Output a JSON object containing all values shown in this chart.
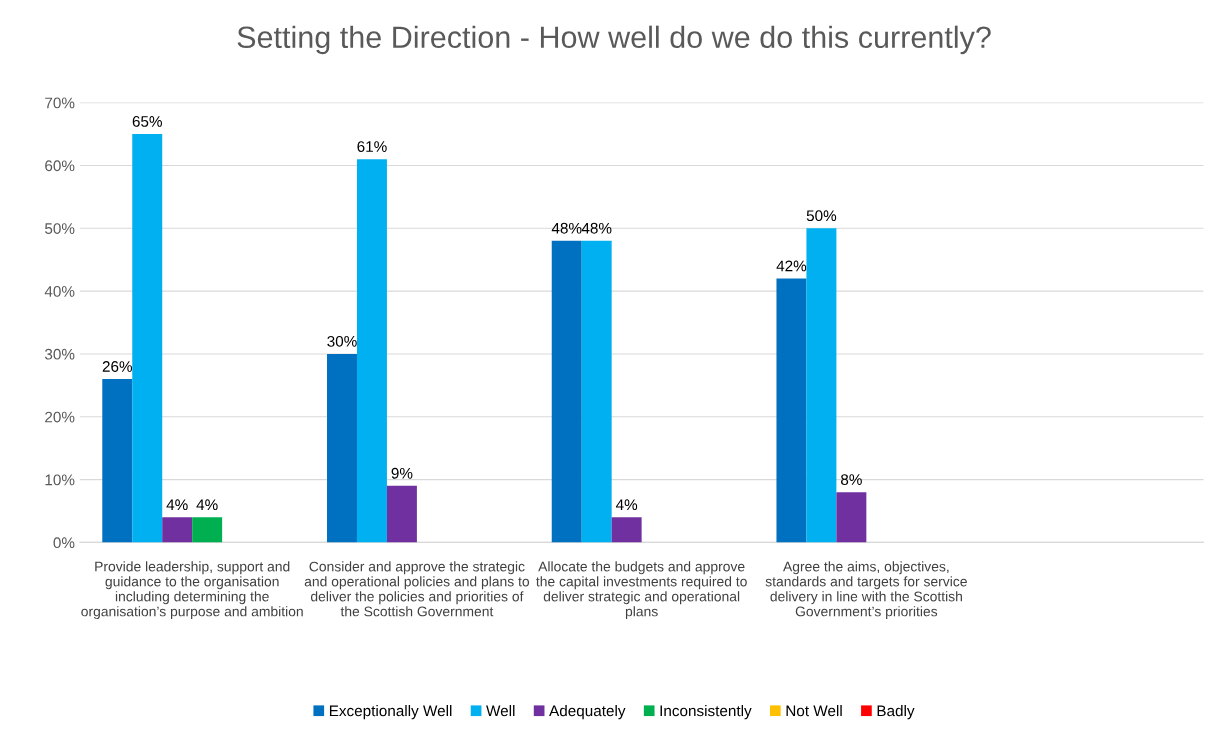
{
  "chart_data": {
    "type": "bar",
    "title": "Setting the Direction - How well do we do this currently?",
    "categories": [
      "Provide leadership, support and guidance to the organisation including determining the organisation’s purpose and ambition",
      "Consider and approve the strategic and operational policies and plans to deliver the policies and priorities of the Scottish Government",
      "Allocate the budgets and approve the capital investments required to deliver strategic and operational plans",
      "Agree the aims, objectives, standards and targets for service delivery in line with the Scottish Government’s priorities",
      null
    ],
    "series": [
      {
        "name": "Exceptionally Well",
        "color": "#0070c0",
        "values": [
          26,
          30,
          48,
          42,
          null
        ],
        "value_labels": [
          "26%",
          "30%",
          "48%",
          "42%",
          null
        ]
      },
      {
        "name": "Well",
        "color": "#00b0f0",
        "values": [
          65,
          61,
          48,
          50,
          null
        ],
        "value_labels": [
          "65%",
          "61%",
          "48%",
          "50%",
          null
        ]
      },
      {
        "name": "Adequately",
        "color": "#7030a0",
        "values": [
          4,
          9,
          4,
          8,
          null
        ],
        "value_labels": [
          "4%",
          "9%",
          "4%",
          "8%",
          null
        ]
      },
      {
        "name": "Inconsistently",
        "color": "#00b050",
        "values": [
          4,
          null,
          null,
          null,
          null
        ],
        "value_labels": [
          "4%",
          null,
          null,
          null,
          null
        ]
      },
      {
        "name": "Not Well",
        "color": "#ffc000",
        "values": [
          null,
          null,
          null,
          null,
          null
        ]
      },
      {
        "name": "Badly",
        "color": "#ff0000",
        "values": [
          null,
          null,
          null,
          null,
          null
        ]
      }
    ],
    "ylim": [
      0,
      70
    ],
    "yticks": [
      {
        "value": 0,
        "label": "0%"
      },
      {
        "value": 10,
        "label": "10%"
      },
      {
        "value": 20,
        "label": "20%"
      },
      {
        "value": 30,
        "label": "30%"
      },
      {
        "value": 40,
        "label": "40%"
      },
      {
        "value": 50,
        "label": "50%"
      },
      {
        "value": 60,
        "label": "60%"
      },
      {
        "value": 70,
        "label": "70%"
      }
    ],
    "grid": "y",
    "legend": "bottom"
  }
}
